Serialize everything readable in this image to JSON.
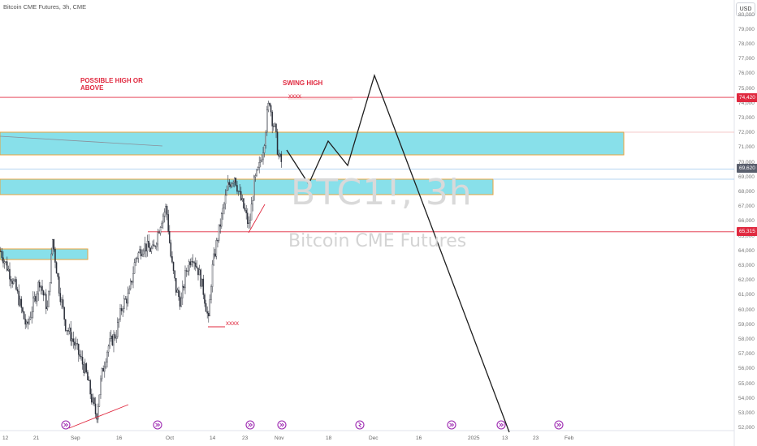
{
  "header": {
    "symbol_line": "Bitcoin CME Futures, 3h, CME",
    "currency_button": "USD"
  },
  "watermark": {
    "symbol": "BTC1!, 3h",
    "description": "Bitcoin CME Futures"
  },
  "annotations": {
    "possible_high": "POSSIBLE HIGH OR\nABOVE",
    "swing_high": "SWING HIGH",
    "marker_top": "xxxx",
    "marker_low": "xxxx"
  },
  "price_badges": [
    {
      "label": "74,420",
      "price": 74420,
      "color": "#e0293f"
    },
    {
      "label": "69,620",
      "price": 69620,
      "color": "#5a5f6d"
    },
    {
      "label": "65,315",
      "price": 65315,
      "color": "#e0293f"
    }
  ],
  "y_axis": {
    "labels": [
      "80,000",
      "79,000",
      "78,000",
      "77,000",
      "76,000",
      "75,000",
      "74,000",
      "73,000",
      "72,000",
      "71,000",
      "70,000",
      "69,000",
      "68,000",
      "67,000",
      "66,000",
      "65,000",
      "64,000",
      "63,000",
      "62,000",
      "61,000",
      "60,000",
      "59,000",
      "58,000",
      "57,000",
      "56,000",
      "55,000",
      "54,000",
      "53,000",
      "52,000"
    ],
    "min": 52000,
    "max": 80000
  },
  "x_axis": {
    "labels": [
      "12",
      "21",
      "Sep",
      "16",
      "Oct",
      "14",
      "23",
      "Nov",
      "18",
      "Dec",
      "16",
      "2025",
      "13",
      "23",
      "Feb"
    ]
  },
  "colors": {
    "zone_fill": "#88e0ea",
    "zone_border": "#e8a33d",
    "level_line": "#e0293f",
    "candle": "#2a2e39",
    "projection": "#1e1e1e"
  },
  "icons": [
    "earnings-icon",
    "earnings-icon",
    "earnings-icon",
    "earnings-icon",
    "dividend-icon",
    "earnings-icon",
    "earnings-icon",
    "earnings-icon"
  ]
}
